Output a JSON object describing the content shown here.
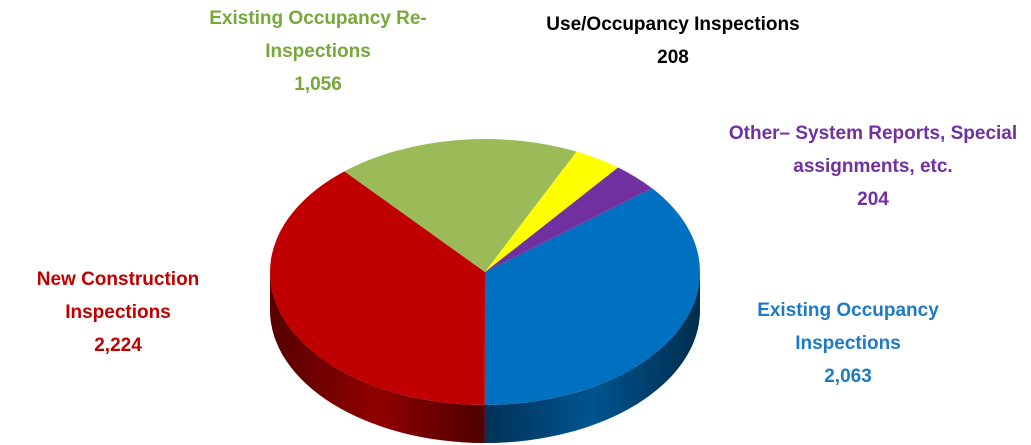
{
  "chart_data": {
    "type": "pie3d",
    "categories": [
      "Existing Occupancy Inspections",
      "New Construction Inspections",
      "Existing Occupancy Re-Inspections",
      "Use/Occupancy Inspections",
      "Other– System Reports, Special assignments, etc."
    ],
    "values": [
      2063,
      2224,
      1056,
      208,
      204
    ],
    "value_labels": [
      "2,063",
      "2,224",
      "1,056",
      "208",
      "204"
    ],
    "colors": [
      "#0070c0",
      "#c00000",
      "#9bbb59",
      "#ffff00",
      "#7030a0"
    ],
    "label_colors": [
      "#1f7ac4",
      "#c00000",
      "#77a83b",
      "#000000",
      "#7030a0"
    ]
  }
}
